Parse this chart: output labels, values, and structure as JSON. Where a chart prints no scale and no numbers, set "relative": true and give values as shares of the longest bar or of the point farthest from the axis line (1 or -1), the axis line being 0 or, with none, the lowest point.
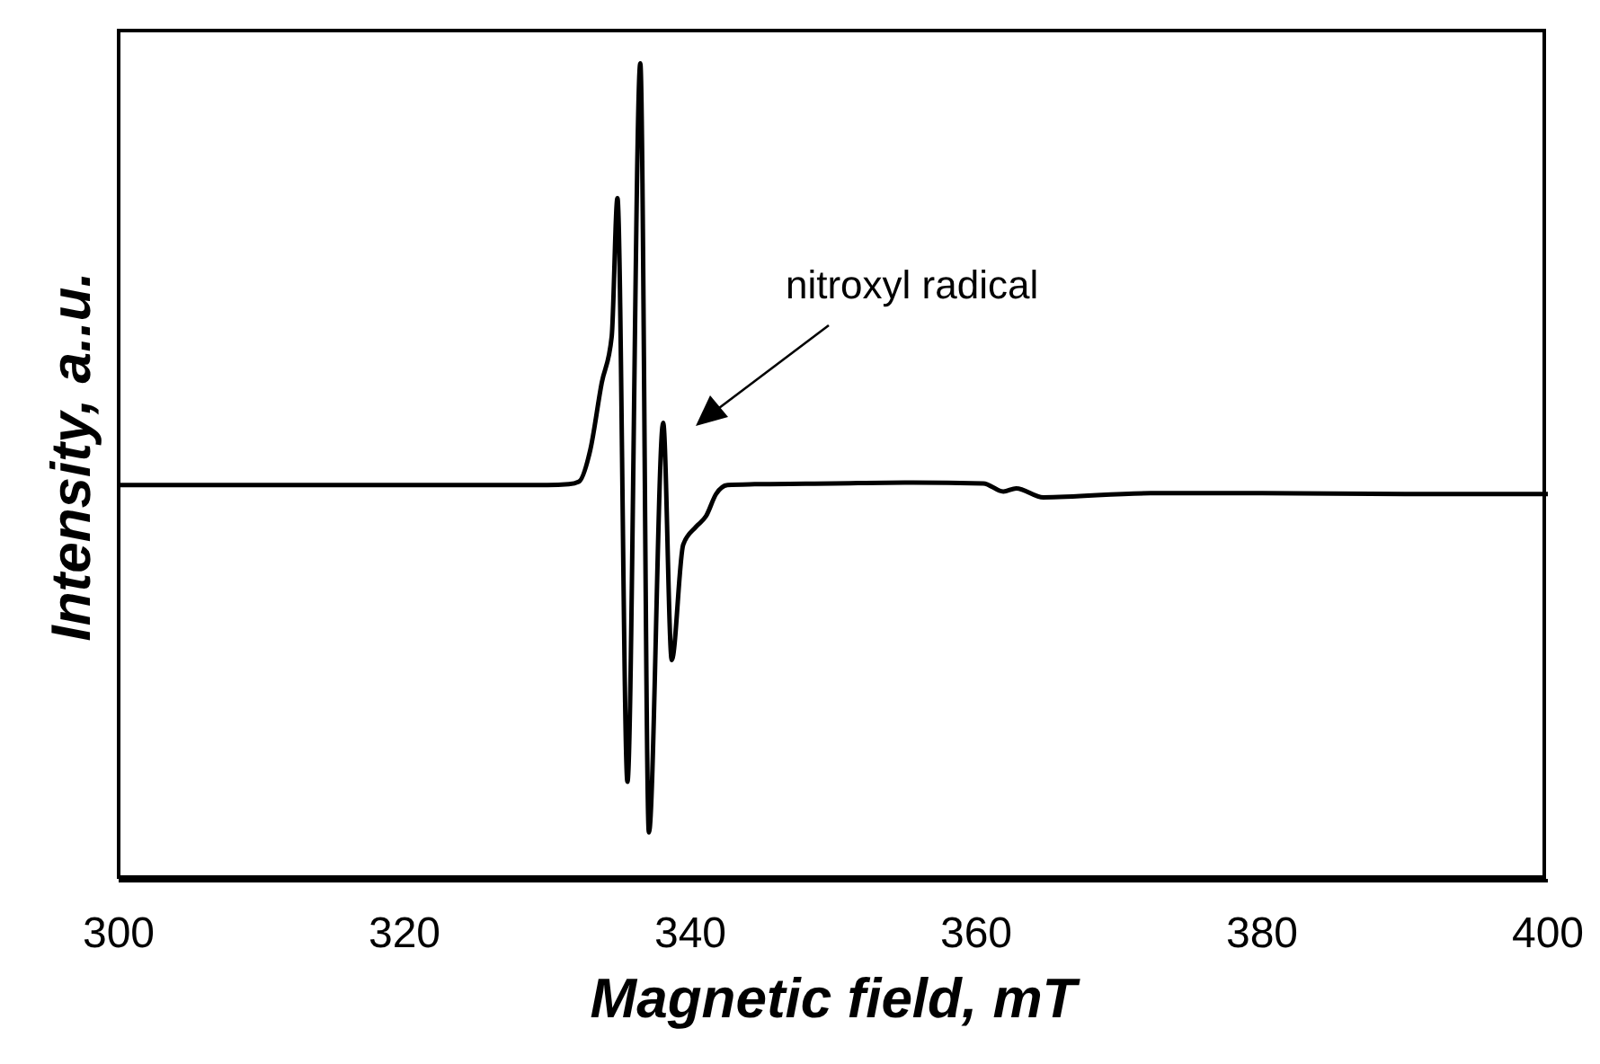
{
  "chart_data": {
    "type": "line",
    "xlabel": "Magnetic field, mT",
    "ylabel": "Intensity, a..u.",
    "relative": true,
    "xlim": [
      300,
      400
    ],
    "xticks": [
      300,
      320,
      340,
      360,
      380,
      400
    ],
    "marker": "none",
    "line_style": "solid",
    "annotations": [
      "nitroxyl radical"
    ],
    "series": [
      {
        "color": "#000000",
        "x": [
          300,
          310,
          320,
          330,
          331.5,
          332.2,
          333.0,
          333.8,
          334.5,
          334.9,
          335.6,
          336.5,
          337.1,
          338.1,
          338.7,
          339.5,
          340.4,
          341.1,
          341.8,
          342.6,
          344.5,
          350,
          355,
          360.5,
          361.9,
          362.8,
          364.7,
          372.2,
          380,
          390,
          400
        ],
        "values": [
          0.484,
          0.484,
          0.484,
          0.484,
          0.485,
          0.488,
          0.527,
          0.609,
          0.666,
          0.835,
          0.121,
          1.0,
          0.059,
          0.56,
          0.27,
          0.411,
          0.433,
          0.446,
          0.473,
          0.484,
          0.485,
          0.486,
          0.487,
          0.486,
          0.476,
          0.48,
          0.469,
          0.474,
          0.474,
          0.473,
          0.473
        ]
      }
    ]
  }
}
